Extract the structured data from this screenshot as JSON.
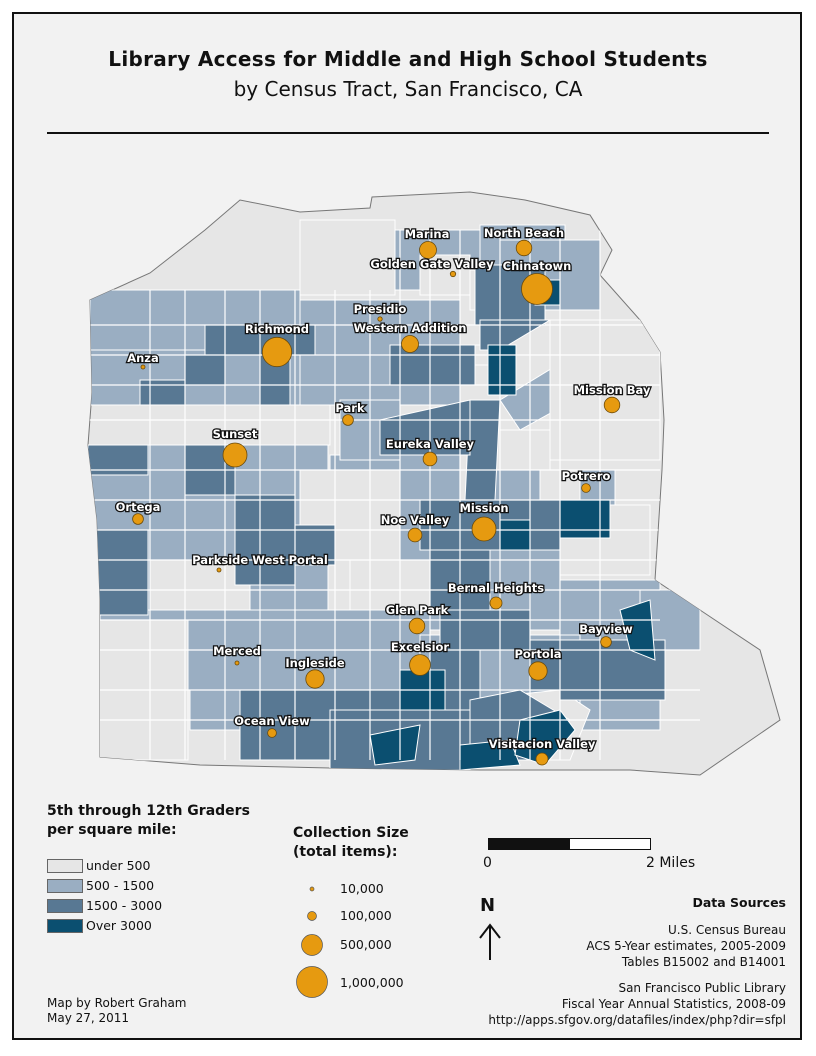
{
  "title": "Library Access for Middle and High School Students",
  "subtitle": "by Census Tract, San Francisco, CA",
  "colors": {
    "under_500": "#e6e6e6",
    "c500_1500": "#9aaec2",
    "c1500_3000": "#587893",
    "over_3000": "#0b4f70",
    "library": "#e69a10",
    "background": "#f2f2f2"
  },
  "libraries": [
    {
      "name": "Marina",
      "size": 300000
    },
    {
      "name": "North Beach",
      "size": 250000
    },
    {
      "name": "Golden Gate Valley",
      "size": 30000
    },
    {
      "name": "Chinatown",
      "size": 1000000
    },
    {
      "name": "Presidio",
      "size": 20000
    },
    {
      "name": "Richmond",
      "size": 900000
    },
    {
      "name": "Western Addition",
      "size": 300000
    },
    {
      "name": "Anza",
      "size": 15000
    },
    {
      "name": "Mission Bay",
      "size": 250000
    },
    {
      "name": "Park",
      "size": 120000
    },
    {
      "name": "Sunset",
      "size": 600000
    },
    {
      "name": "Eureka Valley",
      "size": 200000
    },
    {
      "name": "Potrero",
      "size": 80000
    },
    {
      "name": "Ortega",
      "size": 120000
    },
    {
      "name": "Noe Valley",
      "size": 200000
    },
    {
      "name": "Mission",
      "size": 600000
    },
    {
      "name": "Parkside West Portal",
      "size": 15000
    },
    {
      "name": "Bernal Heights",
      "size": 150000
    },
    {
      "name": "Glen Park",
      "size": 250000
    },
    {
      "name": "Bayview",
      "size": 120000
    },
    {
      "name": "Merced",
      "size": 10000
    },
    {
      "name": "Excelsior",
      "size": 450000
    },
    {
      "name": "Portola",
      "size": 350000
    },
    {
      "name": "Ingleside",
      "size": 350000
    },
    {
      "name": "Ocean View",
      "size": 80000
    },
    {
      "name": "Visitacion Valley",
      "size": 150000
    }
  ],
  "density_legend": {
    "heading_line1": "5th through 12th Graders",
    "heading_line2": "per square mile:",
    "classes": [
      "under 500",
      "500 - 1500",
      "1500 - 3000",
      "Over 3000"
    ]
  },
  "collection_legend": {
    "heading_line1": "Collection Size",
    "heading_line2": "(total items):",
    "values": [
      "10,000",
      "100,000",
      "500,000",
      "1,000,000"
    ]
  },
  "scale_bar": {
    "start_label": "0",
    "end_label": "2 Miles"
  },
  "north_arrow": {
    "label": "N"
  },
  "credit": {
    "line1": "Map by Robert Graham",
    "line2": "May 27, 2011"
  },
  "sources": {
    "heading": "Data Sources",
    "lines": [
      "U.S. Census Bureau",
      "ACS 5-Year estimates, 2005-2009",
      "Tables B15002 and B14001",
      "San Francisco Public Library",
      "Fiscal Year Annual Statistics, 2008-09",
      "http://apps.sfgov.org/datafiles/index/php?dir=sfpl"
    ]
  }
}
